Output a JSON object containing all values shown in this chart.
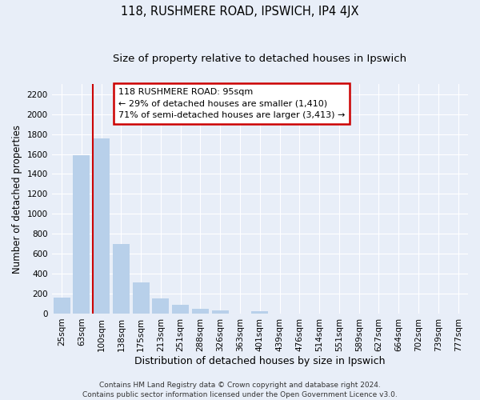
{
  "title": "118, RUSHMERE ROAD, IPSWICH, IP4 4JX",
  "subtitle": "Size of property relative to detached houses in Ipswich",
  "xlabel": "Distribution of detached houses by size in Ipswich",
  "ylabel": "Number of detached properties",
  "footer_line1": "Contains HM Land Registry data © Crown copyright and database right 2024.",
  "footer_line2": "Contains public sector information licensed under the Open Government Licence v3.0.",
  "bar_labels": [
    "25sqm",
    "63sqm",
    "100sqm",
    "138sqm",
    "175sqm",
    "213sqm",
    "251sqm",
    "288sqm",
    "326sqm",
    "363sqm",
    "401sqm",
    "439sqm",
    "476sqm",
    "514sqm",
    "551sqm",
    "589sqm",
    "627sqm",
    "664sqm",
    "702sqm",
    "739sqm",
    "777sqm"
  ],
  "bar_values": [
    160,
    1590,
    1760,
    700,
    315,
    155,
    85,
    50,
    30,
    0,
    20,
    0,
    0,
    0,
    0,
    0,
    0,
    0,
    0,
    0,
    0
  ],
  "bar_color": "#b8d0ea",
  "vline_index": 2,
  "vline_color": "#cc0000",
  "annotation_title": "118 RUSHMERE ROAD: 95sqm",
  "annotation_line1": "← 29% of detached houses are smaller (1,410)",
  "annotation_line2": "71% of semi-detached houses are larger (3,413) →",
  "annotation_box_facecolor": "#ffffff",
  "annotation_box_edgecolor": "#cc0000",
  "ylim": [
    0,
    2300
  ],
  "yticks": [
    0,
    200,
    400,
    600,
    800,
    1000,
    1200,
    1400,
    1600,
    1800,
    2000,
    2200
  ],
  "background_color": "#e8eef8",
  "grid_color": "#ffffff",
  "title_fontsize": 10.5,
  "subtitle_fontsize": 9.5,
  "ylabel_fontsize": 8.5,
  "xlabel_fontsize": 9,
  "tick_fontsize": 7.5,
  "annotation_fontsize": 8,
  "footer_fontsize": 6.5
}
